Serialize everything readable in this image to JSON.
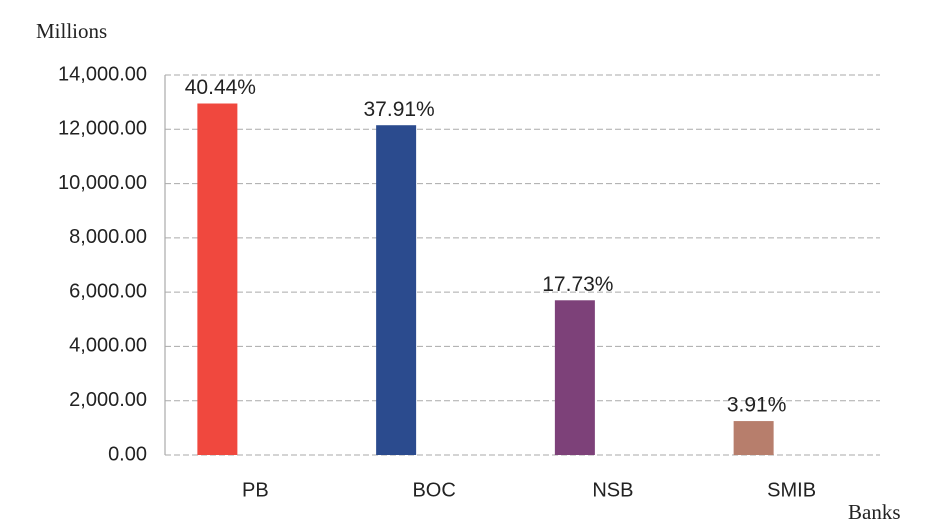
{
  "chart_data": {
    "type": "bar",
    "y_axis_label": "Millions",
    "x_axis_label": "Banks",
    "categories": [
      "PB",
      "BOC",
      "NSB",
      "SMIB"
    ],
    "values": [
      12950,
      12150,
      5700,
      1250
    ],
    "data_labels": [
      "40.44%",
      "37.91%",
      "17.73%",
      "3.91%"
    ],
    "colors": [
      "#f0483e",
      "#2b4b8e",
      "#7d4179",
      "#b77e6c"
    ],
    "ylim": [
      0,
      14000
    ],
    "yticks": [
      {
        "value": 0,
        "label": "0.00"
      },
      {
        "value": 2000,
        "label": "2,000.00"
      },
      {
        "value": 4000,
        "label": "4,000.00"
      },
      {
        "value": 6000,
        "label": "6,000.00"
      },
      {
        "value": 8000,
        "label": "8,000.00"
      },
      {
        "value": 10000,
        "label": "10,000.00"
      },
      {
        "value": 12000,
        "label": "12,000.00"
      },
      {
        "value": 14000,
        "label": "14,000.00"
      }
    ],
    "grid": true
  }
}
